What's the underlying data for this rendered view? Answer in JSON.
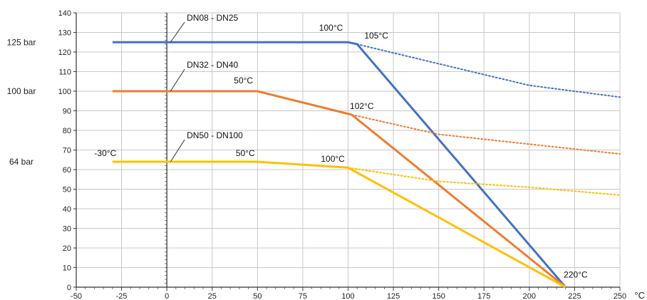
{
  "chart_data": {
    "type": "line",
    "title": "",
    "xlabel": "°C",
    "ylabel": "",
    "xlim": [
      -50,
      250
    ],
    "ylim": [
      0,
      140
    ],
    "x_ticks": [
      -50,
      -25,
      0,
      25,
      50,
      75,
      100,
      125,
      150,
      175,
      200,
      225,
      250
    ],
    "y_ticks": [
      0,
      10,
      20,
      30,
      40,
      50,
      60,
      70,
      80,
      90,
      100,
      110,
      120,
      130,
      140
    ],
    "grid": true,
    "side_labels": [
      {
        "text": "125 bar",
        "y": 125
      },
      {
        "text": "100 bar",
        "y": 100
      },
      {
        "text": "64 bar",
        "y": 64
      }
    ],
    "series": [
      {
        "name": "DN08 - DN25",
        "color": "#4472c4",
        "solid": [
          [
            -30,
            125
          ],
          [
            100,
            125
          ],
          [
            105,
            124
          ],
          [
            220,
            0
          ]
        ],
        "dotted": [
          [
            105,
            124
          ],
          [
            150,
            114
          ],
          [
            200,
            103
          ],
          [
            250,
            97
          ]
        ]
      },
      {
        "name": "DN32 - DN40",
        "color": "#ed7d31",
        "solid": [
          [
            -30,
            100
          ],
          [
            50,
            100
          ],
          [
            102,
            88
          ],
          [
            220,
            0
          ]
        ],
        "dotted": [
          [
            102,
            88
          ],
          [
            150,
            78
          ],
          [
            200,
            73
          ],
          [
            250,
            68
          ]
        ]
      },
      {
        "name": "DN50 - DN100",
        "color": "#ffc000",
        "solid": [
          [
            -30,
            64
          ],
          [
            50,
            64
          ],
          [
            100,
            61
          ],
          [
            220,
            0
          ]
        ],
        "dotted": [
          [
            100,
            61
          ],
          [
            150,
            54
          ],
          [
            200,
            51
          ],
          [
            250,
            47
          ]
        ]
      }
    ],
    "series_labels": [
      {
        "text": "DN08 - DN25",
        "x": 11,
        "y": 136,
        "leader_to": [
          2,
          125
        ]
      },
      {
        "text": "DN32 - DN40",
        "x": 11,
        "y": 112,
        "leader_to": [
          2,
          100
        ]
      },
      {
        "text": "DN50 - DN100",
        "x": 11,
        "y": 76,
        "leader_to": [
          2,
          64
        ]
      }
    ],
    "annotations": [
      {
        "text": "100°C",
        "x": 84,
        "y": 131
      },
      {
        "text": "105°C",
        "x": 109,
        "y": 127
      },
      {
        "text": "50°C",
        "x": 37,
        "y": 104
      },
      {
        "text": "102°C",
        "x": 101,
        "y": 91
      },
      {
        "text": "-30°C",
        "x": -40,
        "y": 67
      },
      {
        "text": "50°C",
        "x": 38,
        "y": 67
      },
      {
        "text": "100°C",
        "x": 85,
        "y": 64
      },
      {
        "text": "220°C",
        "x": 219,
        "y": 5
      }
    ]
  }
}
